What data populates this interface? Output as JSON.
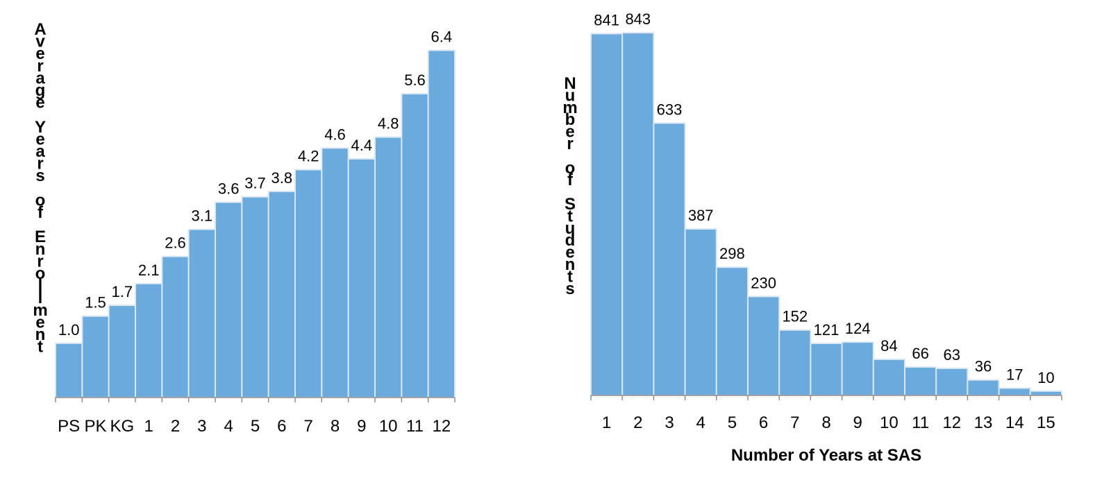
{
  "chart_data": [
    {
      "type": "bar",
      "title": "",
      "xlabel": "",
      "ylabel": "Average Years of Enrollment",
      "categories": [
        "PS",
        "PK",
        "KG",
        "1",
        "2",
        "3",
        "4",
        "5",
        "6",
        "7",
        "8",
        "9",
        "10",
        "11",
        "12"
      ],
      "values": [
        1.0,
        1.5,
        1.7,
        2.1,
        2.6,
        3.1,
        3.6,
        3.7,
        3.8,
        4.2,
        4.6,
        4.4,
        4.8,
        5.6,
        6.4
      ],
      "value_labels": [
        "1.0",
        "1.5",
        "1.7",
        "2.1",
        "2.6",
        "3.1",
        "3.6",
        "3.7",
        "3.8",
        "4.2",
        "4.6",
        "4.4",
        "4.8",
        "5.6",
        "6.4"
      ],
      "ylim": [
        0,
        6.65
      ],
      "grid": false,
      "legend": "none",
      "bar_color": "#6aaadd",
      "bar_edge_color": "#dbe7f3"
    },
    {
      "type": "bar",
      "title": "",
      "xlabel": "Number of Years at SAS",
      "ylabel": "Number of Students",
      "categories": [
        "1",
        "2",
        "3",
        "4",
        "5",
        "6",
        "7",
        "8",
        "9",
        "10",
        "11",
        "12",
        "13",
        "14",
        "15"
      ],
      "values": [
        841,
        843,
        633,
        387,
        298,
        230,
        152,
        121,
        124,
        84,
        66,
        63,
        36,
        17,
        10
      ],
      "value_labels": [
        "841",
        "843",
        "633",
        "387",
        "298",
        "230",
        "152",
        "121",
        "124",
        "84",
        "66",
        "63",
        "36",
        "17",
        "10"
      ],
      "ylim": [
        0,
        845
      ],
      "grid": false,
      "legend": "none",
      "bar_color": "#6aaadd",
      "bar_edge_color": "#dbe7f3"
    }
  ]
}
